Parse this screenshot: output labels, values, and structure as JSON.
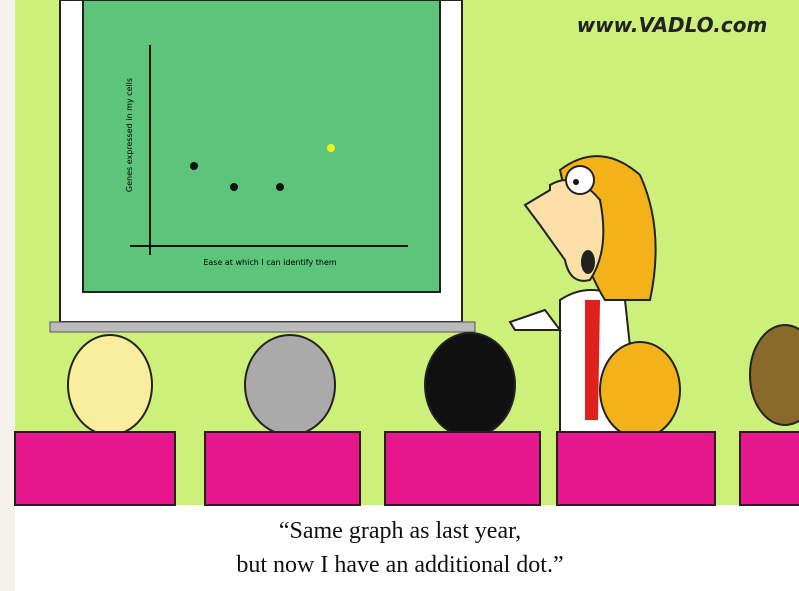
{
  "watermark": "www.VADLO.com",
  "screen": {
    "y_axis_label": "Genes expressed in my cells",
    "x_axis_label": "Ease at which I can identify them"
  },
  "caption": {
    "line1": "“Same graph as last year,",
    "line2": "but now I have an additional dot.”"
  }
}
